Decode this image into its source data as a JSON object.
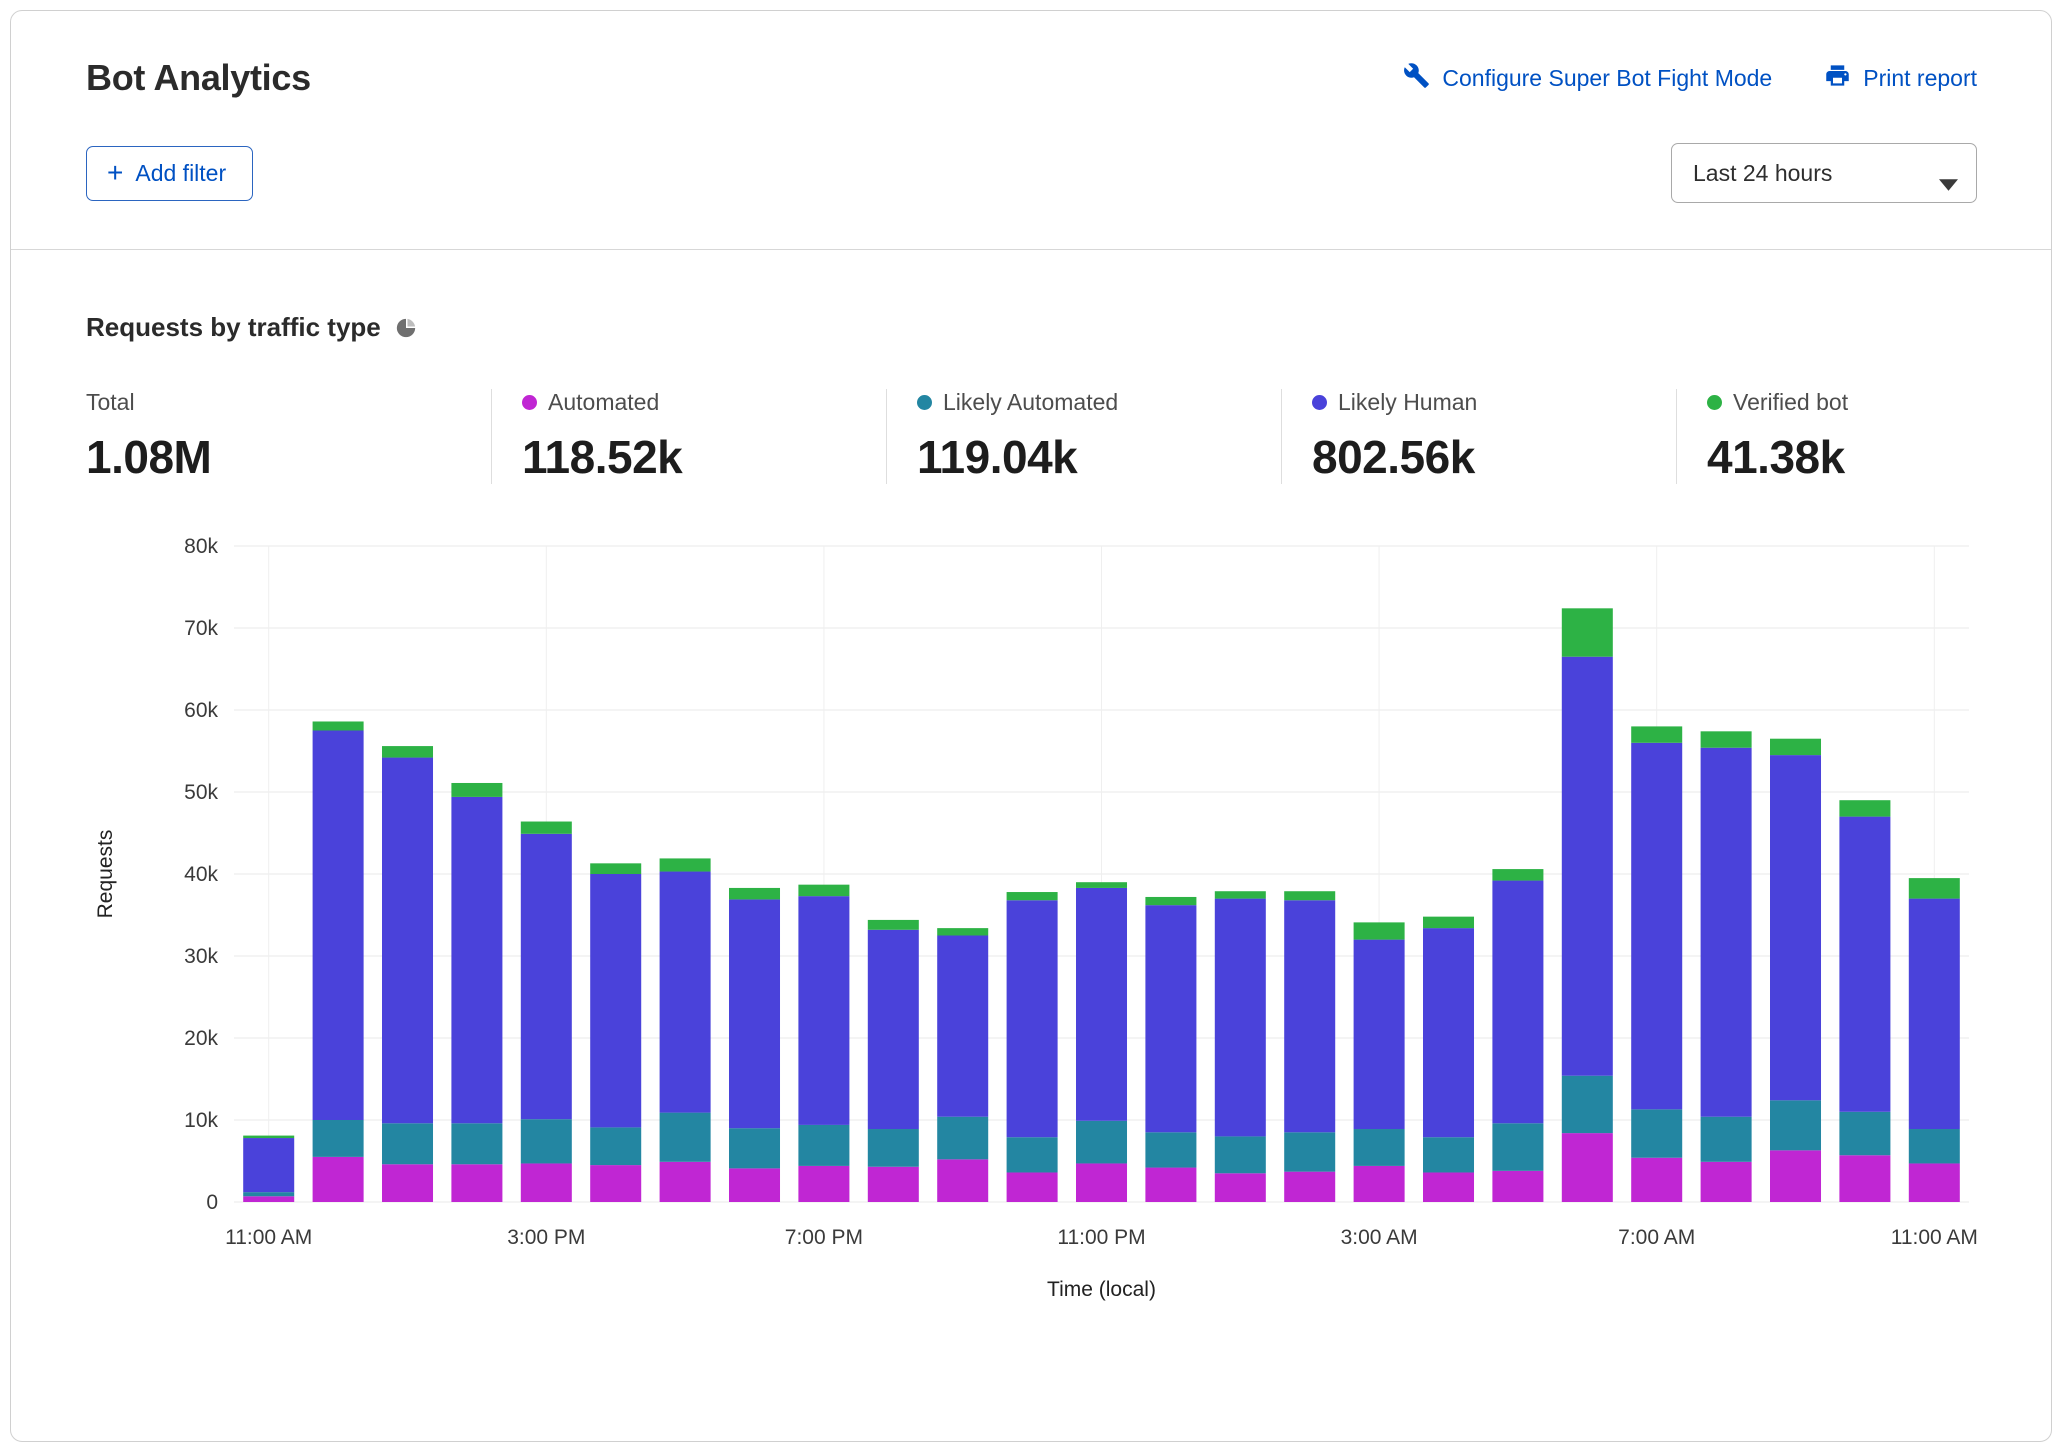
{
  "header": {
    "title": "Bot Analytics",
    "configure_link": "Configure Super Bot Fight Mode",
    "print_link": "Print report"
  },
  "filters": {
    "add_filter_label": "Add filter",
    "time_range_value": "Last 24 hours"
  },
  "section": {
    "title": "Requests by traffic type"
  },
  "stats": [
    {
      "label": "Total",
      "value": "1.08M",
      "dot": null
    },
    {
      "label": "Automated",
      "value": "118.52k",
      "dot": "#c026d3"
    },
    {
      "label": "Likely Automated",
      "value": "119.04k",
      "dot": "#2386a2"
    },
    {
      "label": "Likely Human",
      "value": "802.56k",
      "dot": "#4a42da"
    },
    {
      "label": "Verified bot",
      "value": "41.38k",
      "dot": "#2db245"
    }
  ],
  "chart_data": {
    "type": "bar",
    "stacked": true,
    "title": "Requests by traffic type",
    "xlabel": "Time (local)",
    "ylabel": "Requests",
    "ylim": [
      0,
      80000
    ],
    "ytick_step": 10000,
    "x_count": 25,
    "xticks": [
      {
        "index": 0,
        "label": "11:00 AM"
      },
      {
        "index": 4,
        "label": "3:00 PM"
      },
      {
        "index": 8,
        "label": "7:00 PM"
      },
      {
        "index": 12,
        "label": "11:00 PM"
      },
      {
        "index": 16,
        "label": "3:00 AM"
      },
      {
        "index": 20,
        "label": "7:00 AM"
      },
      {
        "index": 24,
        "label": "11:00 AM"
      }
    ],
    "series": [
      {
        "name": "Automated",
        "color": "#c026d3",
        "values": [
          700,
          5500,
          4600,
          4600,
          4700,
          4500,
          4900,
          4100,
          4400,
          4300,
          5200,
          3600,
          4700,
          4200,
          3500,
          3700,
          4400,
          3600,
          3800,
          8400,
          5400,
          4900,
          6300,
          5700,
          4700
        ]
      },
      {
        "name": "Likely Automated",
        "color": "#2386a2",
        "values": [
          500,
          4500,
          5000,
          5000,
          5400,
          4600,
          6000,
          4900,
          5000,
          4600,
          5200,
          4300,
          5200,
          4300,
          4500,
          4800,
          4500,
          4300,
          5800,
          7000,
          5900,
          5500,
          6100,
          5300,
          4200
        ]
      },
      {
        "name": "Likely Human",
        "color": "#4a42da",
        "values": [
          6600,
          47500,
          44600,
          39800,
          34800,
          30900,
          29400,
          27900,
          27900,
          24300,
          22100,
          28900,
          28400,
          27700,
          29000,
          28300,
          23100,
          25500,
          29600,
          51100,
          44700,
          45000,
          42100,
          36000,
          28100
        ]
      },
      {
        "name": "Verified bot",
        "color": "#2db245",
        "values": [
          300,
          1100,
          1400,
          1700,
          1500,
          1300,
          1600,
          1400,
          1400,
          1200,
          900,
          1000,
          700,
          1000,
          900,
          1100,
          2100,
          1400,
          1400,
          5900,
          2000,
          2000,
          2000,
          2000,
          2500
        ]
      }
    ],
    "legend_position": "top",
    "grid": true
  },
  "colors": {
    "link_blue": "#0051c3",
    "grid_line": "#e8e8e8",
    "card_border": "#d0d0d0"
  }
}
